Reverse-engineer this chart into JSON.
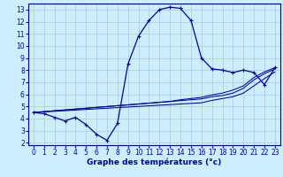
{
  "xlabel": "Graphe des températures (°c)",
  "background_color": "#cceeff",
  "grid_color": "#aacccc",
  "line_color": "#0000aa",
  "x_hours": [
    0,
    1,
    2,
    3,
    4,
    5,
    6,
    7,
    8,
    9,
    10,
    11,
    12,
    13,
    14,
    15,
    16,
    17,
    18,
    19,
    20,
    21,
    22,
    23
  ],
  "temp_main": [
    4.5,
    4.4,
    4.1,
    3.8,
    4.1,
    3.5,
    2.7,
    2.2,
    3.6,
    8.5,
    10.8,
    12.1,
    13.0,
    13.2,
    13.1,
    12.1,
    9.0,
    8.1,
    8.0,
    7.8,
    8.0,
    7.8,
    6.8,
    8.2
  ],
  "temp_line1": [
    4.5,
    4.57,
    4.64,
    4.71,
    4.78,
    4.85,
    4.92,
    4.99,
    5.06,
    5.13,
    5.2,
    5.27,
    5.34,
    5.41,
    5.48,
    5.55,
    5.62,
    5.8,
    5.9,
    6.1,
    6.5,
    7.2,
    7.7,
    8.1
  ],
  "temp_line2": [
    4.5,
    4.57,
    4.64,
    4.71,
    4.78,
    4.85,
    4.92,
    4.99,
    5.06,
    5.13,
    5.2,
    5.27,
    5.34,
    5.41,
    5.55,
    5.65,
    5.75,
    5.95,
    6.1,
    6.35,
    6.7,
    7.4,
    7.85,
    8.2
  ],
  "temp_line3": [
    4.5,
    4.55,
    4.6,
    4.65,
    4.7,
    4.75,
    4.8,
    4.85,
    4.9,
    4.95,
    5.0,
    5.05,
    5.1,
    5.15,
    5.2,
    5.25,
    5.3,
    5.5,
    5.65,
    5.8,
    6.1,
    6.7,
    7.3,
    7.85
  ],
  "ylim": [
    1.8,
    13.5
  ],
  "xlim": [
    -0.5,
    23.5
  ],
  "yticks": [
    2,
    3,
    4,
    5,
    6,
    7,
    8,
    9,
    10,
    11,
    12,
    13
  ],
  "xticks": [
    0,
    1,
    2,
    3,
    4,
    5,
    6,
    7,
    8,
    9,
    10,
    11,
    12,
    13,
    14,
    15,
    16,
    17,
    18,
    19,
    20,
    21,
    22,
    23
  ],
  "xlabel_fontsize": 6.5,
  "tick_fontsize": 5.5
}
